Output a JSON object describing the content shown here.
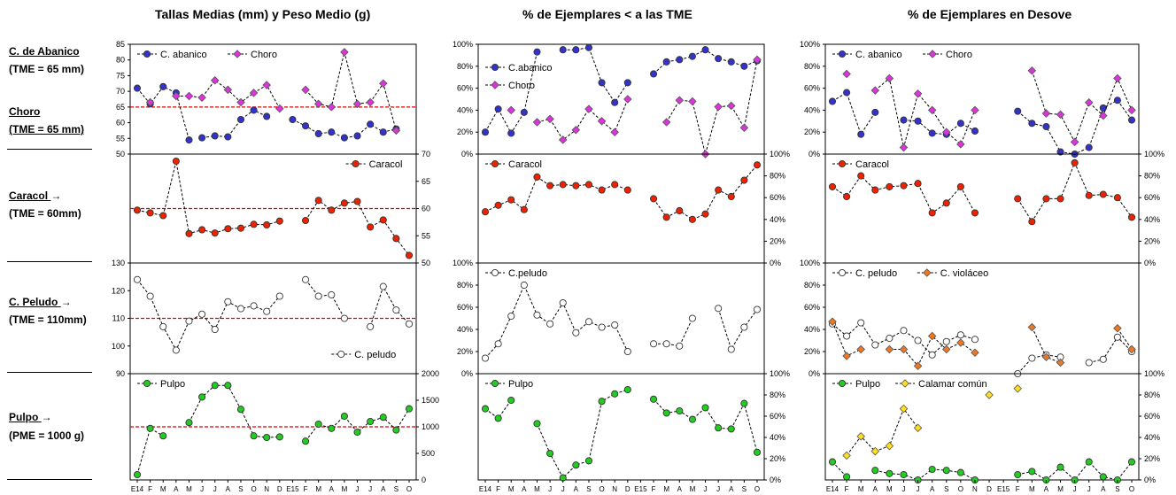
{
  "titles": {
    "col1": "Tallas Medias (mm) y Peso Medio (g)",
    "col2": "% de Ejemplares  < a las TME",
    "col3": "% de Ejemplares en Desove"
  },
  "species": [
    {
      "name": "C. de Abanico",
      "tme": "(TME = 65 mm)"
    },
    {
      "name": "Choro",
      "tme": "(TME = 65 mm)"
    },
    {
      "name": "Caracol",
      "arrow": "→",
      "tme": "(TME = 60mm)"
    },
    {
      "name": "C. Peludo",
      "arrow": "→",
      "tme": "(TME = 110mm)"
    },
    {
      "name": "Pulpo",
      "arrow": "→",
      "tme": "(PME = 1000 g)"
    }
  ],
  "x_labels": [
    "E14",
    "F",
    "M",
    "A",
    "M",
    "J",
    "J",
    "A",
    "S",
    "O",
    "N",
    "D",
    "E15",
    "F",
    "M",
    "A",
    "M",
    "J",
    "J",
    "A",
    "S",
    "O"
  ],
  "colors": {
    "abanico": "#3333cc",
    "choro": "#dd33dd",
    "caracol": "#ee2200",
    "peludo": "#ffffff",
    "violaceo": "#ee7722",
    "pulpo": "#22cc22",
    "calamar": "#ffdd22",
    "refline": "#dd0000"
  },
  "chart_data": [
    {
      "id": "tallas-abanico-choro",
      "type": "line",
      "ylim": [
        50,
        85
      ],
      "yticks": [
        "50",
        "55",
        "60",
        "65",
        "70",
        "75",
        "80",
        "85"
      ],
      "ref_line": 65,
      "series": [
        {
          "name": "C. abanico",
          "marker": "circle",
          "color": "#3333cc",
          "values": [
            71,
            66,
            71.5,
            69.5,
            54.5,
            null,
            null,
            null,
            null,
            null,
            null,
            null,
            61,
            59,
            56.5,
            57,
            55.2,
            55.8,
            59.5,
            57,
            58,
            null
          ]
        },
        {
          "name": "Choro",
          "marker": "diamond",
          "color": "#dd33dd",
          "values": [
            null,
            66.5,
            null,
            68.5,
            68.5,
            68,
            73.5,
            70.5,
            66.5,
            69.5,
            72,
            64.5,
            null,
            70.5,
            66,
            65,
            82.5,
            66,
            66.5,
            72.5,
            57.5,
            null
          ]
        },
        {
          "name": "",
          "marker": "circle",
          "color": "#3333cc",
          "values": [
            null,
            null,
            null,
            null,
            null,
            55.2,
            55.8,
            55.5,
            61,
            64,
            62,
            null,
            null,
            null,
            null,
            null,
            null,
            null,
            null,
            null,
            null,
            null
          ]
        }
      ]
    },
    {
      "id": "tallas-caracol",
      "type": "line",
      "ylim": [
        50,
        70
      ],
      "yticks": [
        "50",
        "55",
        "60",
        "65",
        "70"
      ],
      "ref_line": 60,
      "series": [
        {
          "name": "Caracol",
          "marker": "circle",
          "color": "#ee2200",
          "values": [
            59.7,
            59.2,
            58.7,
            68.7,
            55.4,
            56.1,
            55.5,
            56.3,
            56.4,
            57.1,
            57,
            57.7,
            null,
            57.8,
            61.5,
            59.7,
            61,
            61.3,
            56.6,
            57.9,
            54.5,
            51.4
          ]
        }
      ]
    },
    {
      "id": "tallas-peludo",
      "type": "line",
      "ylim": [
        90,
        130
      ],
      "yticks": [
        "90",
        "100",
        "110",
        "120",
        "130"
      ],
      "ref_line": 110,
      "series": [
        {
          "name": "C. peludo",
          "marker": "circle",
          "color": "#ffffff",
          "values": [
            124,
            118,
            107,
            98.5,
            109,
            111.5,
            106,
            116,
            113.5,
            114.5,
            112.5,
            118,
            null,
            124,
            118,
            118.5,
            110,
            null,
            107,
            121.5,
            113,
            108
          ]
        }
      ]
    },
    {
      "id": "peso-pulpo",
      "type": "line",
      "ylim": [
        0,
        2000
      ],
      "yticks": [
        "0",
        "500",
        "1000",
        "1500",
        "2000"
      ],
      "ref_line": 1000,
      "series": [
        {
          "name": "Pulpo",
          "marker": "circle",
          "color": "#22cc22",
          "values": [
            100,
            970,
            830,
            null,
            1080,
            1560,
            1780,
            1780,
            1330,
            830,
            800,
            810,
            null,
            730,
            1050,
            970,
            1200,
            900,
            1100,
            1180,
            940,
            1340
          ]
        }
      ]
    },
    {
      "id": "pct-abanico-choro",
      "type": "line",
      "ylim": [
        0,
        100
      ],
      "yticks": [
        "0%",
        "20%",
        "40%",
        "60%",
        "80%",
        "100%"
      ],
      "series": [
        {
          "name": "C.abanico",
          "marker": "circle",
          "color": "#3333cc",
          "values": [
            20,
            41,
            19,
            38,
            93,
            null,
            95,
            95,
            97,
            65,
            47,
            65,
            null,
            73,
            84,
            86,
            89,
            95,
            87,
            84,
            80,
            85
          ]
        },
        {
          "name": "Choro",
          "marker": "diamond",
          "color": "#dd33dd",
          "values": [
            null,
            null,
            40,
            null,
            29,
            32,
            13,
            22,
            41,
            30,
            20,
            50,
            null,
            null,
            29,
            49,
            48,
            0,
            43,
            44,
            24,
            86
          ]
        }
      ]
    },
    {
      "id": "pct-caracol",
      "type": "line",
      "ylim": [
        0,
        100
      ],
      "yticks": [
        "0%",
        "20%",
        "40%",
        "60%",
        "80%",
        "100%"
      ],
      "series": [
        {
          "name": "Caracol",
          "marker": "circle",
          "color": "#ee2200",
          "values": [
            47,
            53,
            58,
            49,
            79,
            71,
            72,
            71,
            72,
            67,
            72,
            67,
            null,
            59,
            42,
            48,
            40,
            45,
            67,
            61,
            76,
            90
          ]
        }
      ]
    },
    {
      "id": "pct-peludo",
      "type": "line",
      "ylim": [
        0,
        100
      ],
      "yticks": [
        "0%",
        "20%",
        "40%",
        "60%",
        "80%",
        "100%"
      ],
      "series": [
        {
          "name": "C.peludo",
          "marker": "circle",
          "color": "#ffffff",
          "values": [
            14,
            27,
            52,
            80,
            53,
            45,
            64,
            37,
            47,
            42,
            44,
            20,
            null,
            27,
            27,
            25,
            50,
            null,
            59,
            22,
            42,
            58
          ]
        }
      ]
    },
    {
      "id": "pct-pulpo",
      "type": "line",
      "ylim": [
        0,
        100
      ],
      "yticks": [
        "0%",
        "20%",
        "40%",
        "60%",
        "80%",
        "100%"
      ],
      "series": [
        {
          "name": "Pulpo",
          "marker": "circle",
          "color": "#22cc22",
          "values": [
            67,
            58,
            75,
            null,
            53,
            25,
            2,
            14,
            18,
            74,
            81,
            85,
            null,
            76,
            63,
            65,
            57,
            68,
            49,
            48,
            72,
            26
          ]
        }
      ]
    },
    {
      "id": "desove-abanico-choro",
      "type": "line",
      "ylim": [
        0,
        100
      ],
      "yticks": [
        "0%",
        "20%",
        "40%",
        "60%",
        "80%",
        "100%"
      ],
      "series": [
        {
          "name": "C. abanico",
          "marker": "circle",
          "color": "#3333cc",
          "values": [
            48,
            56,
            18,
            38,
            null,
            31,
            30,
            19,
            18,
            28,
            21,
            null,
            null,
            39,
            28,
            25,
            2,
            0,
            6,
            42,
            49,
            31
          ]
        },
        {
          "name": "Choro",
          "marker": "diamond",
          "color": "#dd33dd",
          "values": [
            null,
            73,
            null,
            58,
            69,
            6,
            55,
            40,
            20,
            9,
            40,
            null,
            null,
            null,
            76,
            37,
            36,
            11,
            47,
            35,
            69,
            40
          ]
        }
      ]
    },
    {
      "id": "desove-caracol",
      "type": "line",
      "ylim": [
        0,
        100
      ],
      "yticks": [
        "0%",
        "20%",
        "40%",
        "60%",
        "80%",
        "100%"
      ],
      "series": [
        {
          "name": "Caracol",
          "marker": "circle",
          "color": "#ee2200",
          "values": [
            70,
            61,
            80,
            67,
            70,
            71,
            73,
            46,
            55,
            70,
            46,
            null,
            null,
            59,
            38,
            59,
            59,
            92,
            62,
            63,
            60,
            42
          ]
        }
      ]
    },
    {
      "id": "desove-peludo-violaceo",
      "type": "line",
      "ylim": [
        0,
        100
      ],
      "yticks": [
        "0%",
        "20%",
        "40%",
        "60%",
        "80%",
        "100%"
      ],
      "series": [
        {
          "name": "C. peludo",
          "marker": "circle",
          "color": "#ffffff",
          "values": [
            45,
            34,
            46,
            26,
            32,
            39,
            30,
            17,
            29,
            35,
            31,
            null,
            null,
            0,
            14,
            17,
            15,
            null,
            10,
            13,
            33,
            20
          ]
        },
        {
          "name": "C. violáceo",
          "marker": "diamond",
          "color": "#ee7722",
          "values": [
            47,
            16,
            22,
            null,
            22,
            22,
            7,
            34,
            22,
            28,
            19,
            null,
            null,
            null,
            42,
            15,
            10,
            null,
            null,
            null,
            41,
            22
          ]
        }
      ]
    },
    {
      "id": "desove-pulpo-calamar",
      "type": "line",
      "ylim": [
        0,
        100
      ],
      "yticks": [
        "0%",
        "20%",
        "40%",
        "60%",
        "80%",
        "100%"
      ],
      "series": [
        {
          "name": "Pulpo",
          "marker": "circle",
          "color": "#22cc22",
          "values": [
            17,
            3,
            null,
            9,
            6,
            5,
            0,
            10,
            9,
            7,
            0,
            null,
            null,
            5,
            8,
            0,
            12,
            0,
            17,
            3,
            0,
            17
          ]
        },
        {
          "name": "Calamar común",
          "marker": "diamond",
          "color": "#ffdd22",
          "values": [
            null,
            23,
            41,
            27,
            32,
            67,
            49,
            null,
            null,
            null,
            null,
            80,
            null,
            86,
            null,
            null,
            null,
            null,
            null,
            null,
            null,
            null
          ]
        }
      ]
    }
  ]
}
